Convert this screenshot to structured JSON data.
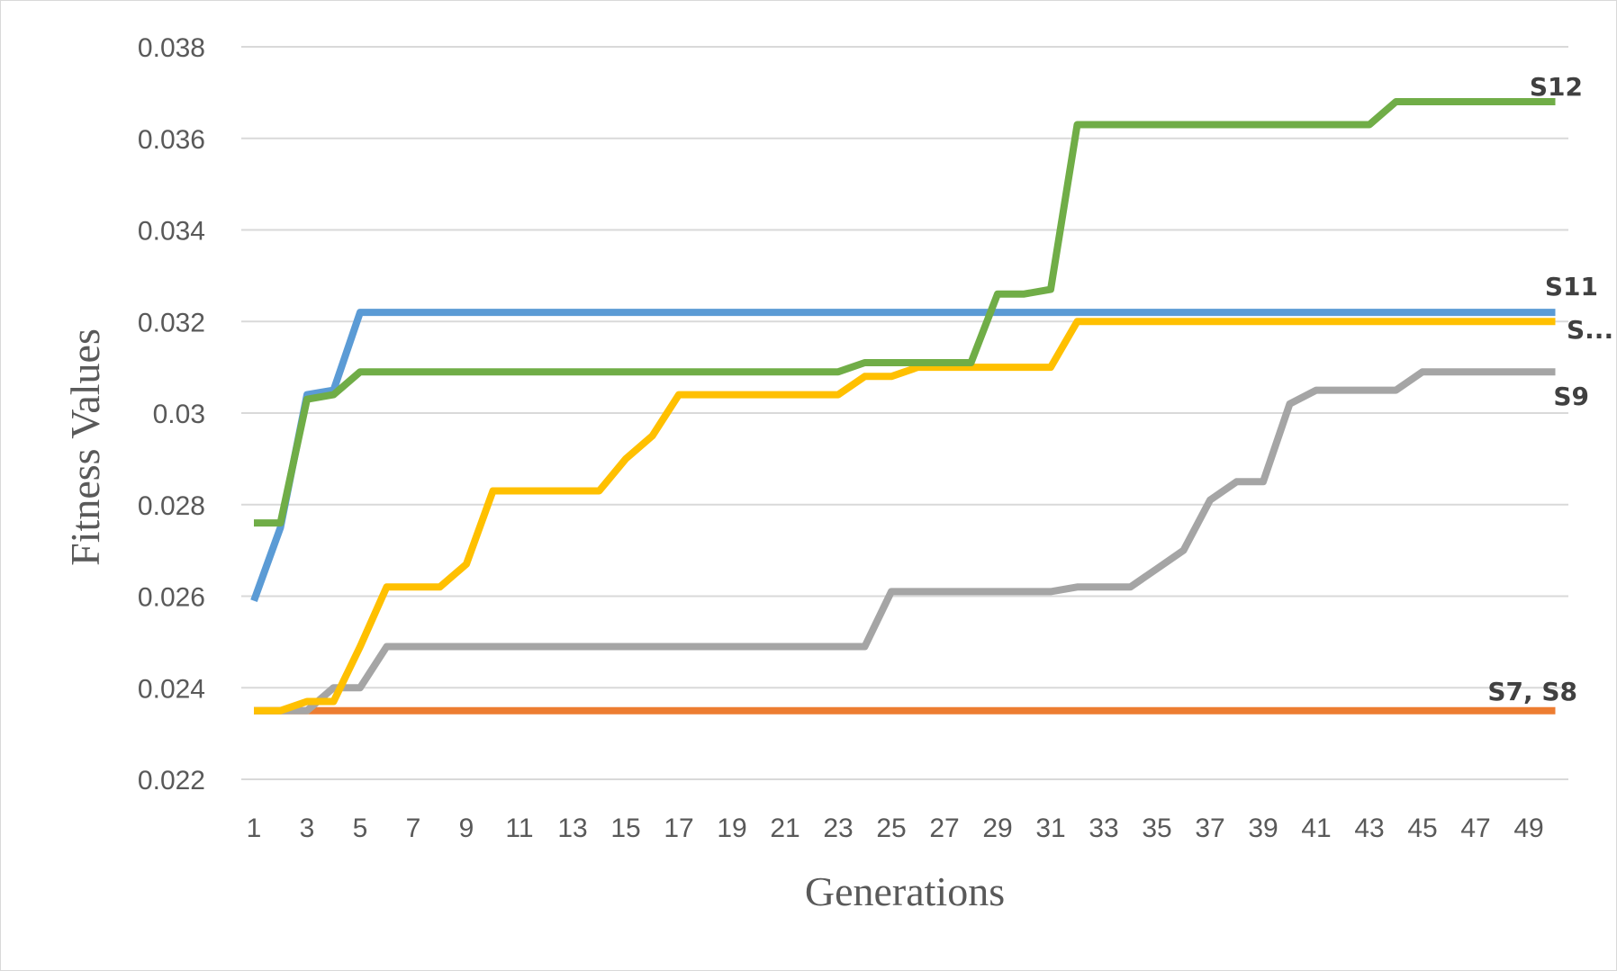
{
  "chart_data": {
    "type": "line",
    "title": "",
    "xlabel": "Generations",
    "ylabel": "Fitness Values",
    "x": [
      1,
      2,
      3,
      4,
      5,
      6,
      7,
      8,
      9,
      10,
      11,
      12,
      13,
      14,
      15,
      16,
      17,
      18,
      19,
      20,
      21,
      22,
      23,
      24,
      25,
      26,
      27,
      28,
      29,
      30,
      31,
      32,
      33,
      34,
      35,
      36,
      37,
      38,
      39,
      40,
      41,
      42,
      43,
      44,
      45,
      46,
      47,
      48,
      49,
      50
    ],
    "x_tick_labels": [
      "1",
      "3",
      "5",
      "7",
      "9",
      "11",
      "13",
      "15",
      "17",
      "19",
      "21",
      "23",
      "25",
      "27",
      "29",
      "31",
      "33",
      "35",
      "37",
      "39",
      "41",
      "43",
      "45",
      "47",
      "49"
    ],
    "ylim": [
      0.022,
      0.038
    ],
    "y_ticks": [
      0.022,
      0.024,
      0.026,
      0.028,
      0.03,
      0.032,
      0.034,
      0.036,
      0.038
    ],
    "y_tick_labels": [
      "0.022",
      "0.024",
      "0.026",
      "0.028",
      "0.03",
      "0.032",
      "0.034",
      "0.036",
      "0.038"
    ],
    "grid": true,
    "legend": "none",
    "series": [
      {
        "label": "S7, S8",
        "color": "#ED7D31",
        "values": [
          0.0235,
          0.0235,
          0.0235,
          0.0235,
          0.0235,
          0.0235,
          0.0235,
          0.0235,
          0.0235,
          0.0235,
          0.0235,
          0.0235,
          0.0235,
          0.0235,
          0.0235,
          0.0235,
          0.0235,
          0.0235,
          0.0235,
          0.0235,
          0.0235,
          0.0235,
          0.0235,
          0.0235,
          0.0235,
          0.0235,
          0.0235,
          0.0235,
          0.0235,
          0.0235,
          0.0235,
          0.0235,
          0.0235,
          0.0235,
          0.0235,
          0.0235,
          0.0235,
          0.0235,
          0.0235,
          0.0235,
          0.0235,
          0.0235,
          0.0235,
          0.0235,
          0.0235,
          0.0235,
          0.0235,
          0.0235,
          0.0235,
          0.0235
        ]
      },
      {
        "label": "S9",
        "color": "#A5A5A5",
        "values": [
          0.0235,
          0.0235,
          0.0235,
          0.024,
          0.024,
          0.0249,
          0.0249,
          0.0249,
          0.0249,
          0.0249,
          0.0249,
          0.0249,
          0.0249,
          0.0249,
          0.0249,
          0.0249,
          0.0249,
          0.0249,
          0.0249,
          0.0249,
          0.0249,
          0.0249,
          0.0249,
          0.0249,
          0.0261,
          0.0261,
          0.0261,
          0.0261,
          0.0261,
          0.0261,
          0.0261,
          0.0262,
          0.0262,
          0.0262,
          0.0266,
          0.027,
          0.0281,
          0.0285,
          0.0285,
          0.0302,
          0.0305,
          0.0305,
          0.0305,
          0.0305,
          0.0309,
          0.0309,
          0.0309,
          0.0309,
          0.0309,
          0.0309
        ]
      },
      {
        "label": "S...",
        "color": "#FFC000",
        "values": [
          0.0235,
          0.0235,
          0.0237,
          0.0237,
          0.0249,
          0.0262,
          0.0262,
          0.0262,
          0.0267,
          0.0283,
          0.0283,
          0.0283,
          0.0283,
          0.0283,
          0.029,
          0.0295,
          0.0304,
          0.0304,
          0.0304,
          0.0304,
          0.0304,
          0.0304,
          0.0304,
          0.0308,
          0.0308,
          0.031,
          0.031,
          0.031,
          0.031,
          0.031,
          0.031,
          0.032,
          0.032,
          0.032,
          0.032,
          0.032,
          0.032,
          0.032,
          0.032,
          0.032,
          0.032,
          0.032,
          0.032,
          0.032,
          0.032,
          0.032,
          0.032,
          0.032,
          0.032,
          0.032
        ]
      },
      {
        "label": "S11",
        "color": "#5B9BD5",
        "values": [
          0.0259,
          0.0275,
          0.0304,
          0.0305,
          0.0322,
          0.0322,
          0.0322,
          0.0322,
          0.0322,
          0.0322,
          0.0322,
          0.0322,
          0.0322,
          0.0322,
          0.0322,
          0.0322,
          0.0322,
          0.0322,
          0.0322,
          0.0322,
          0.0322,
          0.0322,
          0.0322,
          0.0322,
          0.0322,
          0.0322,
          0.0322,
          0.0322,
          0.0322,
          0.0322,
          0.0322,
          0.0322,
          0.0322,
          0.0322,
          0.0322,
          0.0322,
          0.0322,
          0.0322,
          0.0322,
          0.0322,
          0.0322,
          0.0322,
          0.0322,
          0.0322,
          0.0322,
          0.0322,
          0.0322,
          0.0322,
          0.0322,
          0.0322
        ]
      },
      {
        "label": "S12",
        "color": "#70AD47",
        "values": [
          0.0276,
          0.0276,
          0.0303,
          0.0304,
          0.0309,
          0.0309,
          0.0309,
          0.0309,
          0.0309,
          0.0309,
          0.0309,
          0.0309,
          0.0309,
          0.0309,
          0.0309,
          0.0309,
          0.0309,
          0.0309,
          0.0309,
          0.0309,
          0.0309,
          0.0309,
          0.0309,
          0.0311,
          0.0311,
          0.0311,
          0.0311,
          0.0311,
          0.0326,
          0.0326,
          0.0327,
          0.0363,
          0.0363,
          0.0363,
          0.0363,
          0.0363,
          0.0363,
          0.0363,
          0.0363,
          0.0363,
          0.0363,
          0.0363,
          0.0363,
          0.0368,
          0.0368,
          0.0368,
          0.0368,
          0.0368,
          0.0368,
          0.0368
        ]
      }
    ]
  }
}
